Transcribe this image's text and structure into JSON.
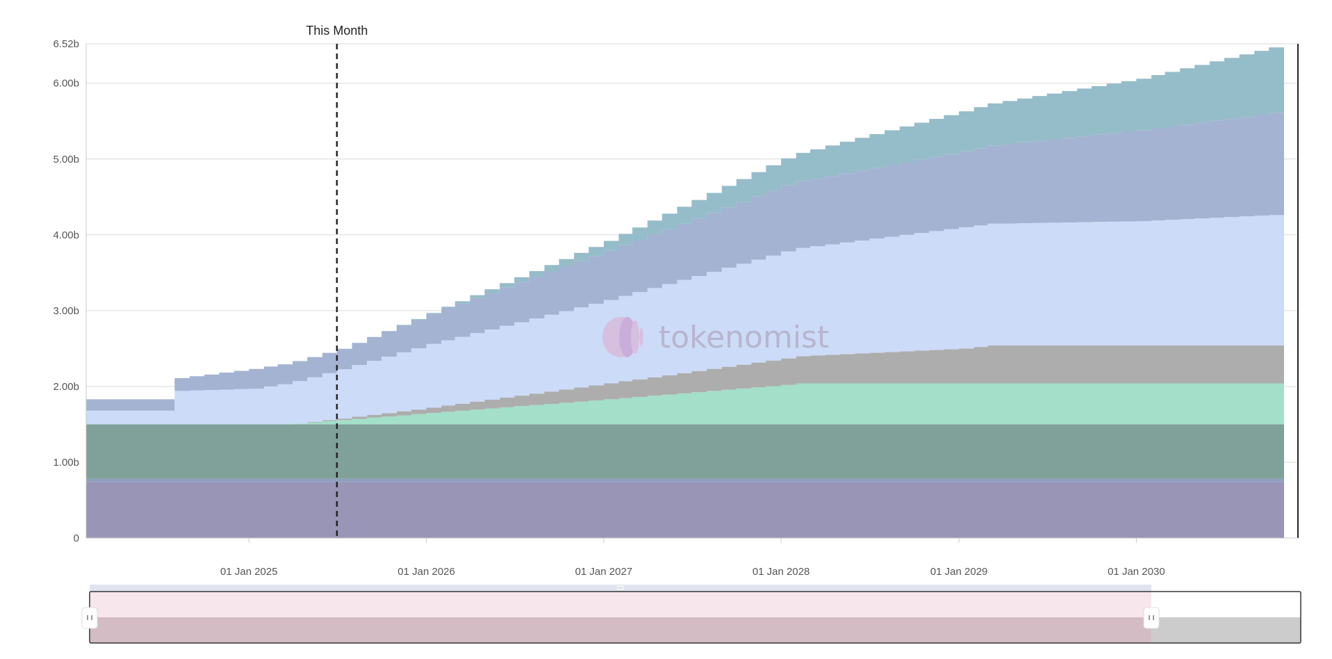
{
  "chart_data": {
    "type": "area",
    "title": "",
    "xlabel": "",
    "ylabel": "",
    "x_range": [
      "2024-02-01",
      "2030-11-01"
    ],
    "ylim": [
      0,
      6.52
    ],
    "unit": "b",
    "y_ticks": [
      {
        "value": 0,
        "label": "0"
      },
      {
        "value": 1.0,
        "label": "1.00b"
      },
      {
        "value": 2.0,
        "label": "2.00b"
      },
      {
        "value": 3.0,
        "label": "3.00b"
      },
      {
        "value": 4.0,
        "label": "4.00b"
      },
      {
        "value": 5.0,
        "label": "5.00b"
      },
      {
        "value": 6.0,
        "label": "6.00b"
      },
      {
        "value": 6.52,
        "label": "6.52b"
      }
    ],
    "x_ticks": [
      {
        "date": "2025-01-01",
        "label": "01 Jan 2025"
      },
      {
        "date": "2026-01-01",
        "label": "01 Jan 2026"
      },
      {
        "date": "2027-01-01",
        "label": "01 Jan 2027"
      },
      {
        "date": "2028-01-01",
        "label": "01 Jan 2028"
      },
      {
        "date": "2029-01-01",
        "label": "01 Jan 2029"
      },
      {
        "date": "2030-01-01",
        "label": "01 Jan 2030"
      }
    ],
    "marker": {
      "date": "2025-07-01",
      "label": "This Month"
    },
    "grid": true,
    "stacked": true,
    "step": true,
    "watermark": "tokenomist",
    "series": [
      {
        "color": "#9995b6",
        "points": [
          [
            "2024-02-01",
            0.74
          ],
          [
            "2030-11-01",
            0.74
          ]
        ]
      },
      {
        "color": "#8f9fc0",
        "points": [
          [
            "2024-02-01",
            0.04
          ],
          [
            "2030-11-01",
            0.04
          ]
        ]
      },
      {
        "color": "#7fa199",
        "points": [
          [
            "2024-02-01",
            0.72
          ],
          [
            "2030-11-01",
            0.72
          ]
        ]
      },
      {
        "color": "#a3dfc9",
        "points": [
          [
            "2024-02-01",
            0
          ],
          [
            "2025-03-01",
            0
          ],
          [
            "2025-04-01",
            0.01
          ],
          [
            "2026-01-01",
            0.15
          ],
          [
            "2027-01-01",
            0.33
          ],
          [
            "2028-01-01",
            0.52
          ],
          [
            "2028-02-01",
            0.54
          ],
          [
            "2030-11-01",
            0.54
          ]
        ]
      },
      {
        "color": "#adadad",
        "points": [
          [
            "2024-02-01",
            0
          ],
          [
            "2025-04-01",
            0
          ],
          [
            "2025-07-01",
            0.02
          ],
          [
            "2026-01-01",
            0.07
          ],
          [
            "2027-01-01",
            0.21
          ],
          [
            "2028-01-01",
            0.35
          ],
          [
            "2029-01-01",
            0.46
          ],
          [
            "2029-03-01",
            0.5
          ],
          [
            "2030-11-01",
            0.5
          ]
        ]
      },
      {
        "color": "#ccdbf8",
        "points": [
          [
            "2024-02-01",
            0.18
          ],
          [
            "2024-07-01",
            0.18
          ],
          [
            "2024-08-01",
            0.44
          ],
          [
            "2025-01-01",
            0.47
          ],
          [
            "2025-07-01",
            0.65
          ],
          [
            "2026-01-01",
            0.84
          ],
          [
            "2027-01-01",
            1.1
          ],
          [
            "2028-01-01",
            1.41
          ],
          [
            "2029-01-01",
            1.6
          ],
          [
            "2030-01-01",
            1.64
          ],
          [
            "2030-11-01",
            1.73
          ]
        ]
      },
      {
        "color": "#a4b3d2",
        "points": [
          [
            "2024-02-01",
            0.15
          ],
          [
            "2024-07-01",
            0.15
          ],
          [
            "2024-08-01",
            0.17
          ],
          [
            "2025-01-01",
            0.26
          ],
          [
            "2025-07-01",
            0.27
          ],
          [
            "2026-01-01",
            0.4
          ],
          [
            "2027-01-01",
            0.65
          ],
          [
            "2028-01-01",
            0.87
          ],
          [
            "2029-01-01",
            1.0
          ],
          [
            "2030-01-01",
            1.2
          ],
          [
            "2030-11-01",
            1.36
          ]
        ]
      },
      {
        "color": "#95bcc9",
        "points": [
          [
            "2024-02-01",
            0
          ],
          [
            "2025-09-01",
            0
          ],
          [
            "2026-01-01",
            0.01
          ],
          [
            "2027-01-01",
            0.13
          ],
          [
            "2028-01-01",
            0.36
          ],
          [
            "2029-01-01",
            0.53
          ],
          [
            "2030-01-01",
            0.68
          ],
          [
            "2030-11-01",
            0.89
          ]
        ]
      }
    ]
  },
  "navigator": {
    "range_start": "2024-02-01",
    "range_end": "2030-01-01"
  }
}
